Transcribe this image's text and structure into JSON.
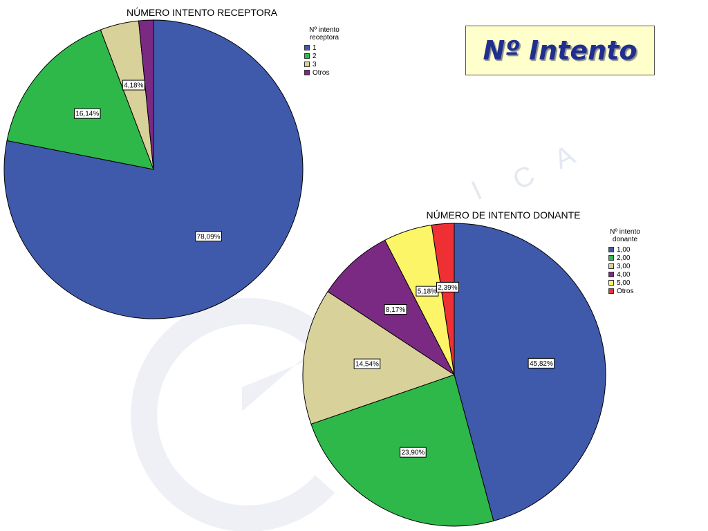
{
  "header": {
    "title": "Nº Intento"
  },
  "watermark": {
    "letters": [
      "I",
      "C",
      "A"
    ]
  },
  "chart_data": [
    {
      "type": "pie",
      "title": "NÚMERO INTENTO RECEPTORA",
      "legend_title": "Nº intento receptora",
      "legend_position": "top-right",
      "series": [
        {
          "name": "1",
          "value": 78.09,
          "label": "78,09%",
          "color": "#3f59ab"
        },
        {
          "name": "2",
          "value": 16.14,
          "label": "16,14%",
          "color": "#2eb84a"
        },
        {
          "name": "3",
          "value": 4.18,
          "label": "4,18%",
          "color": "#d8d19a"
        },
        {
          "name": "Otros",
          "value": 1.59,
          "label": "",
          "color": "#7b2a84"
        }
      ]
    },
    {
      "type": "pie",
      "title": "NÚMERO DE INTENTO DONANTE",
      "legend_title": "Nº intento donante",
      "legend_position": "right",
      "series": [
        {
          "name": "1,00",
          "value": 45.82,
          "label": "45,82%",
          "color": "#3f59ab"
        },
        {
          "name": "2,00",
          "value": 23.9,
          "label": "23,90%",
          "color": "#2eb84a"
        },
        {
          "name": "3,00",
          "value": 14.54,
          "label": "14,54%",
          "color": "#d8d19a"
        },
        {
          "name": "4,00",
          "value": 8.17,
          "label": "8,17%",
          "color": "#7b2a84"
        },
        {
          "name": "5,00",
          "value": 5.18,
          "label": "5,18%",
          "color": "#fbf567"
        },
        {
          "name": "Otros",
          "value": 2.39,
          "label": "2,39%",
          "color": "#ee3035"
        }
      ]
    }
  ]
}
